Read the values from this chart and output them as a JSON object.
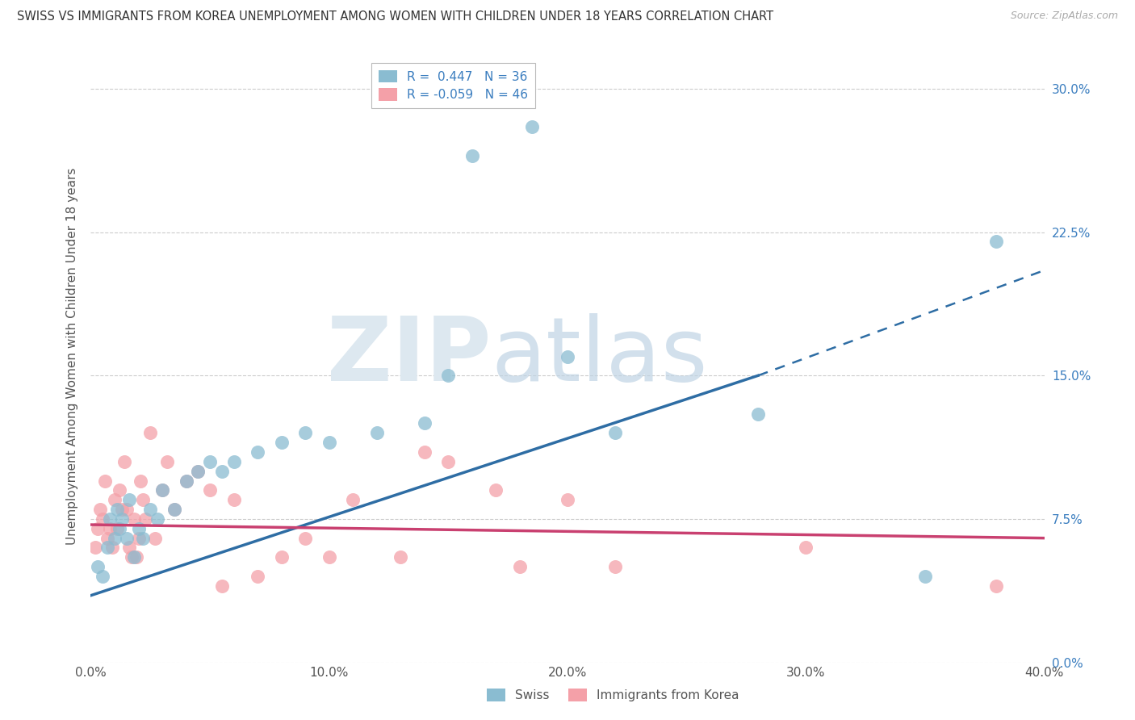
{
  "title": "SWISS VS IMMIGRANTS FROM KOREA UNEMPLOYMENT AMONG WOMEN WITH CHILDREN UNDER 18 YEARS CORRELATION CHART",
  "source": "Source: ZipAtlas.com",
  "ylabel": "Unemployment Among Women with Children Under 18 years",
  "xlim": [
    0,
    40
  ],
  "ylim": [
    0,
    32
  ],
  "xticks": [
    0,
    10,
    20,
    30,
    40
  ],
  "yticks": [
    0,
    7.5,
    15,
    22.5,
    30
  ],
  "xtick_labels": [
    "0.0%",
    "10.0%",
    "20.0%",
    "30.0%",
    "40.0%"
  ],
  "ytick_labels": [
    "0.0%",
    "7.5%",
    "15.0%",
    "22.5%",
    "30.0%"
  ],
  "swiss_color": "#8abcd1",
  "korean_color": "#f4a0a8",
  "swiss_line_color": "#2e6da4",
  "korean_line_color": "#c94070",
  "swiss_R": 0.447,
  "swiss_N": 36,
  "korean_R": -0.059,
  "korean_N": 46,
  "background_color": "#ffffff",
  "grid_color": "#cccccc",
  "watermark_zip": "ZIP",
  "watermark_atlas": "atlas",
  "swiss_scatter_x": [
    0.3,
    0.5,
    0.7,
    0.8,
    1.0,
    1.1,
    1.2,
    1.3,
    1.5,
    1.6,
    1.8,
    2.0,
    2.2,
    2.5,
    2.8,
    3.0,
    3.5,
    4.0,
    4.5,
    5.0,
    5.5,
    6.0,
    7.0,
    8.0,
    9.0,
    10.0,
    12.0,
    14.0,
    15.0,
    16.0,
    18.5,
    20.0,
    22.0,
    28.0,
    35.0,
    38.0
  ],
  "swiss_scatter_y": [
    5.0,
    4.5,
    6.0,
    7.5,
    6.5,
    8.0,
    7.0,
    7.5,
    6.5,
    8.5,
    5.5,
    7.0,
    6.5,
    8.0,
    7.5,
    9.0,
    8.0,
    9.5,
    10.0,
    10.5,
    10.0,
    10.5,
    11.0,
    11.5,
    12.0,
    11.5,
    12.0,
    12.5,
    15.0,
    26.5,
    28.0,
    16.0,
    12.0,
    13.0,
    4.5,
    22.0
  ],
  "korean_scatter_x": [
    0.2,
    0.4,
    0.5,
    0.6,
    0.7,
    0.8,
    0.9,
    1.0,
    1.1,
    1.2,
    1.3,
    1.4,
    1.5,
    1.6,
    1.7,
    1.8,
    1.9,
    2.0,
    2.1,
    2.2,
    2.3,
    2.5,
    2.7,
    3.0,
    3.2,
    3.5,
    4.0,
    4.5,
    5.0,
    5.5,
    6.0,
    7.0,
    8.0,
    9.0,
    10.0,
    11.0,
    13.0,
    14.0,
    15.0,
    17.0,
    18.0,
    20.0,
    22.0,
    30.0,
    38.0,
    0.3
  ],
  "korean_scatter_y": [
    6.0,
    8.0,
    7.5,
    9.5,
    6.5,
    7.0,
    6.0,
    8.5,
    7.0,
    9.0,
    8.0,
    10.5,
    8.0,
    6.0,
    5.5,
    7.5,
    5.5,
    6.5,
    9.5,
    8.5,
    7.5,
    12.0,
    6.5,
    9.0,
    10.5,
    8.0,
    9.5,
    10.0,
    9.0,
    4.0,
    8.5,
    4.5,
    5.5,
    6.5,
    5.5,
    8.5,
    5.5,
    11.0,
    10.5,
    9.0,
    5.0,
    8.5,
    5.0,
    6.0,
    4.0,
    7.0
  ],
  "swiss_trend_x0": 0.0,
  "swiss_trend_y0": 3.5,
  "swiss_trend_x1": 28.0,
  "swiss_trend_y1": 15.0,
  "swiss_trend_xdash": 40.0,
  "swiss_trend_ydash": 20.5,
  "korean_trend_x0": 0.0,
  "korean_trend_y0": 7.2,
  "korean_trend_x1": 40.0,
  "korean_trend_y1": 6.5
}
